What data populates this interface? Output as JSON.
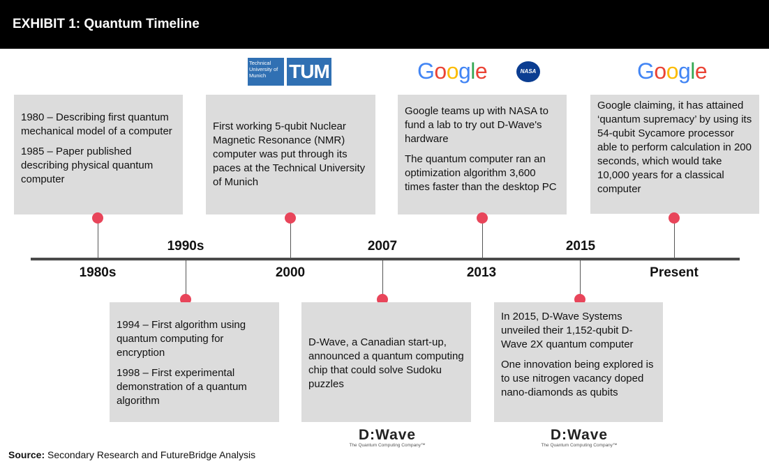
{
  "header": {
    "title": "EXHIBIT 1: Quantum Timeline"
  },
  "milestones": [
    {
      "year": "1980s",
      "paragraphs": [
        "1980 – Describing first quantum mechanical model of a computer",
        "1985 – Paper published describing physical quantum computer"
      ]
    },
    {
      "year": "1990s",
      "paragraphs": [
        "1994 – First algorithm using quantum computing for encryption",
        "1998 – First experimental demonstration of a quantum algorithm"
      ]
    },
    {
      "year": "2000",
      "paragraphs": [
        "First working 5-qubit Nuclear Magnetic Resonance (NMR) computer was put through its paces at the Technical University of Munich"
      ]
    },
    {
      "year": "2007",
      "paragraphs": [
        "D-Wave, a Canadian start-up, announced a quantum computing chip that could solve Sudoku puzzles"
      ]
    },
    {
      "year": "2013",
      "paragraphs": [
        "Google teams up with NASA to fund a lab to try out D-Wave's hardware",
        "The quantum computer ran an optimization algorithm 3,600 times faster than the desktop PC"
      ]
    },
    {
      "year": "2015",
      "paragraphs": [
        "In 2015, D-Wave Systems unveiled their 1,152-qubit D-Wave 2X quantum computer",
        "One innovation being explored is to use nitrogen vacancy doped nano-diamonds as qubits"
      ]
    },
    {
      "year": "Present",
      "paragraphs": [
        "Google claiming, it has attained ‘quantum supremacy’ by using its 54-qubit Sycamore processor able to perform calculation in 200 seconds, which would take 10,000 years for a classical computer"
      ]
    }
  ],
  "logos": {
    "tum_text": "Technical University of Munich",
    "tum_mark": "TUM",
    "google": "Google",
    "nasa": "NASA",
    "dwave": "D:Wave",
    "dwave_tagline": "The Quantum Computing Company™"
  },
  "source": {
    "label": "Source:",
    "text": "Secondary Research and FutureBridge Analysis"
  },
  "colors": {
    "header_bg": "#000000",
    "box_bg": "#dcdcdc",
    "dot": "#e8455a",
    "axis": "#4a4a4a"
  }
}
